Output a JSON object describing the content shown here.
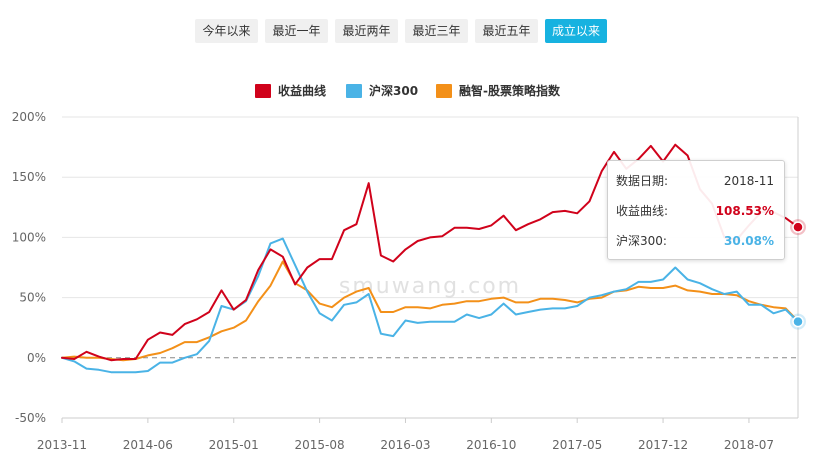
{
  "range_tabs": [
    {
      "label": "今年以来",
      "active": false
    },
    {
      "label": "最近一年",
      "active": false
    },
    {
      "label": "最近两年",
      "active": false
    },
    {
      "label": "最近三年",
      "active": false
    },
    {
      "label": "最近五年",
      "active": false
    },
    {
      "label": "成立以来",
      "active": true
    }
  ],
  "tooltip": {
    "date_label": "数据日期:",
    "date_value": "2018-11",
    "rows": [
      {
        "label": "收益曲线:",
        "value": "108.53%",
        "color": "#d0021b"
      },
      {
        "label": "沪深300:",
        "value": "30.08%",
        "color": "#4ab3e6"
      }
    ]
  },
  "watermark": "smuwang.com",
  "colors": {
    "accent": "#17b2e0"
  },
  "chart_data": {
    "type": "line",
    "x_tick_labels": [
      "2013-11",
      "2014-06",
      "2015-01",
      "2015-08",
      "2016-03",
      "2016-10",
      "2017-05",
      "2017-12",
      "2018-07"
    ],
    "y_ticks": [
      -50,
      0,
      50,
      100,
      150,
      200
    ],
    "y_tick_labels": [
      "-50%",
      "0%",
      "50%",
      "100%",
      "150%",
      "200%"
    ],
    "ylim": [
      -50,
      200
    ],
    "x_range": [
      "2013-11",
      "2018-11"
    ],
    "grid": "horizontal",
    "zero_line": "dashed",
    "legend_position": "top-center",
    "series": [
      {
        "name": "收益曲线",
        "color": "#d0021b",
        "values": [
          {
            "x": "2013-11",
            "y": 0
          },
          {
            "x": "2013-12",
            "y": -1
          },
          {
            "x": "2014-01",
            "y": 5
          },
          {
            "x": "2014-02",
            "y": 1
          },
          {
            "x": "2014-03",
            "y": -2
          },
          {
            "x": "2014-04",
            "y": -1
          },
          {
            "x": "2014-05",
            "y": -1
          },
          {
            "x": "2014-06",
            "y": 15
          },
          {
            "x": "2014-07",
            "y": 21
          },
          {
            "x": "2014-08",
            "y": 19
          },
          {
            "x": "2014-09",
            "y": 28
          },
          {
            "x": "2014-10",
            "y": 32
          },
          {
            "x": "2014-11",
            "y": 38
          },
          {
            "x": "2014-12",
            "y": 56
          },
          {
            "x": "2015-01",
            "y": 40
          },
          {
            "x": "2015-02",
            "y": 48
          },
          {
            "x": "2015-03",
            "y": 73
          },
          {
            "x": "2015-04",
            "y": 90
          },
          {
            "x": "2015-05",
            "y": 84
          },
          {
            "x": "2015-06",
            "y": 61
          },
          {
            "x": "2015-07",
            "y": 75
          },
          {
            "x": "2015-08",
            "y": 82
          },
          {
            "x": "2015-09",
            "y": 82
          },
          {
            "x": "2015-10",
            "y": 106
          },
          {
            "x": "2015-11",
            "y": 111
          },
          {
            "x": "2015-12",
            "y": 145
          },
          {
            "x": "2016-01",
            "y": 85
          },
          {
            "x": "2016-02",
            "y": 80
          },
          {
            "x": "2016-03",
            "y": 90
          },
          {
            "x": "2016-04",
            "y": 97
          },
          {
            "x": "2016-05",
            "y": 100
          },
          {
            "x": "2016-06",
            "y": 101
          },
          {
            "x": "2016-07",
            "y": 108
          },
          {
            "x": "2016-08",
            "y": 108
          },
          {
            "x": "2016-09",
            "y": 107
          },
          {
            "x": "2016-10",
            "y": 110
          },
          {
            "x": "2016-11",
            "y": 118
          },
          {
            "x": "2016-12",
            "y": 106
          },
          {
            "x": "2017-01",
            "y": 111
          },
          {
            "x": "2017-02",
            "y": 115
          },
          {
            "x": "2017-03",
            "y": 121
          },
          {
            "x": "2017-04",
            "y": 122
          },
          {
            "x": "2017-05",
            "y": 120
          },
          {
            "x": "2017-06",
            "y": 130
          },
          {
            "x": "2017-07",
            "y": 155
          },
          {
            "x": "2017-08",
            "y": 171
          },
          {
            "x": "2017-09",
            "y": 157
          },
          {
            "x": "2017-10",
            "y": 165
          },
          {
            "x": "2017-11",
            "y": 176
          },
          {
            "x": "2017-12",
            "y": 163
          },
          {
            "x": "2018-01",
            "y": 177
          },
          {
            "x": "2018-02",
            "y": 168
          },
          {
            "x": "2018-03",
            "y": 140
          },
          {
            "x": "2018-04",
            "y": 128
          },
          {
            "x": "2018-05",
            "y": 100
          },
          {
            "x": "2018-06",
            "y": 98
          },
          {
            "x": "2018-07",
            "y": 110
          },
          {
            "x": "2018-08",
            "y": 121
          },
          {
            "x": "2018-09",
            "y": 121
          },
          {
            "x": "2018-10",
            "y": 116
          },
          {
            "x": "2018-11",
            "y": 108.53
          }
        ]
      },
      {
        "name": "沪深300",
        "color": "#4ab3e6",
        "values": [
          {
            "x": "2013-11",
            "y": 0
          },
          {
            "x": "2013-12",
            "y": -3
          },
          {
            "x": "2014-01",
            "y": -9
          },
          {
            "x": "2014-02",
            "y": -10
          },
          {
            "x": "2014-03",
            "y": -12
          },
          {
            "x": "2014-04",
            "y": -12
          },
          {
            "x": "2014-05",
            "y": -12
          },
          {
            "x": "2014-06",
            "y": -11
          },
          {
            "x": "2014-07",
            "y": -4
          },
          {
            "x": "2014-08",
            "y": -4
          },
          {
            "x": "2014-09",
            "y": 0
          },
          {
            "x": "2014-10",
            "y": 3
          },
          {
            "x": "2014-11",
            "y": 14
          },
          {
            "x": "2014-12",
            "y": 43
          },
          {
            "x": "2015-01",
            "y": 40
          },
          {
            "x": "2015-02",
            "y": 47
          },
          {
            "x": "2015-03",
            "y": 68
          },
          {
            "x": "2015-04",
            "y": 95
          },
          {
            "x": "2015-05",
            "y": 99
          },
          {
            "x": "2015-06",
            "y": 77
          },
          {
            "x": "2015-07",
            "y": 55
          },
          {
            "x": "2015-08",
            "y": 37
          },
          {
            "x": "2015-09",
            "y": 31
          },
          {
            "x": "2015-10",
            "y": 44
          },
          {
            "x": "2015-11",
            "y": 46
          },
          {
            "x": "2015-12",
            "y": 53
          },
          {
            "x": "2016-01",
            "y": 20
          },
          {
            "x": "2016-02",
            "y": 18
          },
          {
            "x": "2016-03",
            "y": 31
          },
          {
            "x": "2016-04",
            "y": 29
          },
          {
            "x": "2016-05",
            "y": 30
          },
          {
            "x": "2016-06",
            "y": 30
          },
          {
            "x": "2016-07",
            "y": 30
          },
          {
            "x": "2016-08",
            "y": 36
          },
          {
            "x": "2016-09",
            "y": 33
          },
          {
            "x": "2016-10",
            "y": 36
          },
          {
            "x": "2016-11",
            "y": 45
          },
          {
            "x": "2016-12",
            "y": 36
          },
          {
            "x": "2017-01",
            "y": 38
          },
          {
            "x": "2017-02",
            "y": 40
          },
          {
            "x": "2017-03",
            "y": 41
          },
          {
            "x": "2017-04",
            "y": 41
          },
          {
            "x": "2017-05",
            "y": 43
          },
          {
            "x": "2017-06",
            "y": 50
          },
          {
            "x": "2017-07",
            "y": 52
          },
          {
            "x": "2017-08",
            "y": 55
          },
          {
            "x": "2017-09",
            "y": 57
          },
          {
            "x": "2017-10",
            "y": 63
          },
          {
            "x": "2017-11",
            "y": 63
          },
          {
            "x": "2017-12",
            "y": 65
          },
          {
            "x": "2018-01",
            "y": 75
          },
          {
            "x": "2018-02",
            "y": 65
          },
          {
            "x": "2018-03",
            "y": 62
          },
          {
            "x": "2018-04",
            "y": 57
          },
          {
            "x": "2018-05",
            "y": 53
          },
          {
            "x": "2018-06",
            "y": 55
          },
          {
            "x": "2018-07",
            "y": 44
          },
          {
            "x": "2018-08",
            "y": 44
          },
          {
            "x": "2018-09",
            "y": 37
          },
          {
            "x": "2018-10",
            "y": 40
          },
          {
            "x": "2018-11",
            "y": 30.08
          }
        ]
      },
      {
        "name": "融智-股票策略指数",
        "color": "#f39019",
        "values": [
          {
            "x": "2013-11",
            "y": 0
          },
          {
            "x": "2013-12",
            "y": 1
          },
          {
            "x": "2014-01",
            "y": 0
          },
          {
            "x": "2014-02",
            "y": 0
          },
          {
            "x": "2014-03",
            "y": -1
          },
          {
            "x": "2014-04",
            "y": -2
          },
          {
            "x": "2014-05",
            "y": -1
          },
          {
            "x": "2014-06",
            "y": 2
          },
          {
            "x": "2014-07",
            "y": 4
          },
          {
            "x": "2014-08",
            "y": 8
          },
          {
            "x": "2014-09",
            "y": 13
          },
          {
            "x": "2014-10",
            "y": 13
          },
          {
            "x": "2014-11",
            "y": 17
          },
          {
            "x": "2014-12",
            "y": 22
          },
          {
            "x": "2015-01",
            "y": 25
          },
          {
            "x": "2015-02",
            "y": 31
          },
          {
            "x": "2015-03",
            "y": 47
          },
          {
            "x": "2015-04",
            "y": 60
          },
          {
            "x": "2015-05",
            "y": 80
          },
          {
            "x": "2015-06",
            "y": 62
          },
          {
            "x": "2015-07",
            "y": 56
          },
          {
            "x": "2015-08",
            "y": 45
          },
          {
            "x": "2015-09",
            "y": 42
          },
          {
            "x": "2015-10",
            "y": 50
          },
          {
            "x": "2015-11",
            "y": 55
          },
          {
            "x": "2015-12",
            "y": 58
          },
          {
            "x": "2016-01",
            "y": 38
          },
          {
            "x": "2016-02",
            "y": 38
          },
          {
            "x": "2016-03",
            "y": 42
          },
          {
            "x": "2016-04",
            "y": 42
          },
          {
            "x": "2016-05",
            "y": 41
          },
          {
            "x": "2016-06",
            "y": 44
          },
          {
            "x": "2016-07",
            "y": 45
          },
          {
            "x": "2016-08",
            "y": 47
          },
          {
            "x": "2016-09",
            "y": 47
          },
          {
            "x": "2016-10",
            "y": 49
          },
          {
            "x": "2016-11",
            "y": 50
          },
          {
            "x": "2016-12",
            "y": 46
          },
          {
            "x": "2017-01",
            "y": 46
          },
          {
            "x": "2017-02",
            "y": 49
          },
          {
            "x": "2017-03",
            "y": 49
          },
          {
            "x": "2017-04",
            "y": 48
          },
          {
            "x": "2017-05",
            "y": 46
          },
          {
            "x": "2017-06",
            "y": 49
          },
          {
            "x": "2017-07",
            "y": 50
          },
          {
            "x": "2017-08",
            "y": 55
          },
          {
            "x": "2017-09",
            "y": 56
          },
          {
            "x": "2017-10",
            "y": 59
          },
          {
            "x": "2017-11",
            "y": 58
          },
          {
            "x": "2017-12",
            "y": 58
          },
          {
            "x": "2018-01",
            "y": 60
          },
          {
            "x": "2018-02",
            "y": 56
          },
          {
            "x": "2018-03",
            "y": 55
          },
          {
            "x": "2018-04",
            "y": 53
          },
          {
            "x": "2018-05",
            "y": 53
          },
          {
            "x": "2018-06",
            "y": 52
          },
          {
            "x": "2018-07",
            "y": 47
          },
          {
            "x": "2018-08",
            "y": 44
          },
          {
            "x": "2018-09",
            "y": 42
          },
          {
            "x": "2018-10",
            "y": 41
          },
          {
            "x": "2018-11",
            "y": 30.5
          }
        ]
      }
    ]
  }
}
